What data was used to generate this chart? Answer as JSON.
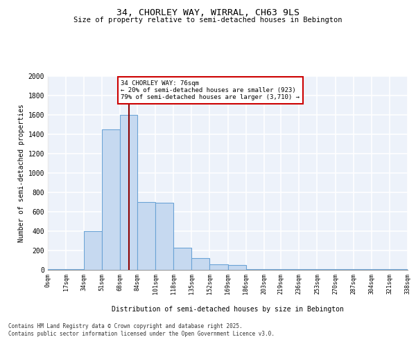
{
  "title1": "34, CHORLEY WAY, WIRRAL, CH63 9LS",
  "title2": "Size of property relative to semi-detached houses in Bebington",
  "xlabel": "Distribution of semi-detached houses by size in Bebington",
  "ylabel": "Number of semi-detached properties",
  "bin_edges": [
    0,
    17,
    34,
    51,
    68,
    84,
    101,
    118,
    135,
    152,
    169,
    186,
    203,
    219,
    236,
    253,
    270,
    287,
    304,
    321,
    338
  ],
  "bar_values": [
    5,
    10,
    400,
    1450,
    1600,
    700,
    690,
    230,
    120,
    55,
    50,
    5,
    5,
    5,
    5,
    5,
    5,
    5,
    5,
    5
  ],
  "bar_color": "#c6d9f0",
  "bar_edgecolor": "#6ba3d6",
  "property_size": 76,
  "annotation_text": "34 CHORLEY WAY: 76sqm\n← 20% of semi-detached houses are smaller (923)\n79% of semi-detached houses are larger (3,710) →",
  "vline_color": "#8b0000",
  "annotation_box_edgecolor": "#cc0000",
  "ylim": [
    0,
    2000
  ],
  "yticks": [
    0,
    200,
    400,
    600,
    800,
    1000,
    1200,
    1400,
    1600,
    1800,
    2000
  ],
  "footer": "Contains HM Land Registry data © Crown copyright and database right 2025.\nContains public sector information licensed under the Open Government Licence v3.0.",
  "bg_color": "#edf2fa",
  "grid_color": "#ffffff"
}
